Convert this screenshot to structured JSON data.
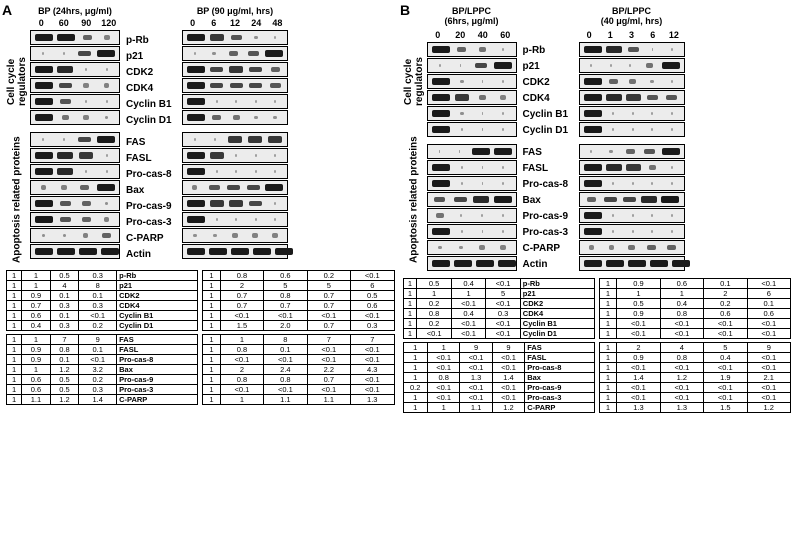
{
  "panelA": {
    "label": "A",
    "leftHeader": "BP (24hrs, μg/ml)",
    "leftLanes": [
      "0",
      "60",
      "90",
      "120"
    ],
    "rightHeader": "BP (90 μg/ml, hrs)",
    "rightLanes": [
      "0",
      "6",
      "12",
      "24",
      "48"
    ]
  },
  "panelB": {
    "label": "B",
    "leftHeader": "BP/LPPC\n(6hrs, μg/ml)",
    "leftLanes": [
      "0",
      "20",
      "40",
      "60"
    ],
    "rightHeader": "BP/LPPC\n(40 μg/ml, hrs)",
    "rightLanes": [
      "0",
      "1",
      "3",
      "6",
      "12"
    ]
  },
  "groups": {
    "cellCycle": "Cell cycle\nregulators",
    "apoptosis": "Apoptosis related\nproteins"
  },
  "proteins1": [
    "p-Rb",
    "p21",
    "CDK2",
    "CDK4",
    "Cyclin B1",
    "Cyclin D1"
  ],
  "proteins2": [
    "FAS",
    "FASL",
    "Pro-cas-8",
    "Bax",
    "Pro-cas-9",
    "Pro-cas-3",
    "C-PARP",
    "Actin"
  ],
  "bands": {
    "A_left": {
      "p-Rb": [
        1,
        1,
        0.5,
        0.3
      ],
      "p21": [
        0.1,
        0.1,
        0.7,
        1
      ],
      "CDK2": [
        1,
        0.9,
        0.1,
        0.1
      ],
      "CDK4": [
        1,
        0.7,
        0.3,
        0.3
      ],
      "Cyclin B1": [
        1,
        0.6,
        0.1,
        0.1
      ],
      "Cyclin D1": [
        1,
        0.4,
        0.3,
        0.2
      ],
      "FAS": [
        0.1,
        0.1,
        0.7,
        1
      ],
      "FASL": [
        1,
        0.9,
        0.8,
        0.1
      ],
      "Pro-cas-8": [
        1,
        0.9,
        0.1,
        0.1
      ],
      "Bax": [
        0.3,
        0.3,
        0.5,
        1
      ],
      "Pro-cas-9": [
        1,
        0.6,
        0.5,
        0.2
      ],
      "Pro-cas-3": [
        1,
        0.6,
        0.5,
        0.3
      ],
      "C-PARP": [
        0.2,
        0.2,
        0.3,
        0.5
      ],
      "Actin": [
        1,
        1,
        1,
        1
      ]
    },
    "A_right": {
      "p-Rb": [
        1,
        0.8,
        0.6,
        0.2,
        0.1
      ],
      "p21": [
        0.1,
        0.2,
        0.5,
        0.6,
        1
      ],
      "CDK2": [
        1,
        0.7,
        0.8,
        0.7,
        0.5
      ],
      "CDK4": [
        1,
        0.7,
        0.7,
        0.7,
        0.6
      ],
      "Cyclin B1": [
        1,
        0.1,
        0.1,
        0.1,
        0.1
      ],
      "Cyclin D1": [
        1,
        0.5,
        0.4,
        0.2,
        0.2
      ],
      "FAS": [
        0.1,
        0.1,
        0.8,
        0.8,
        0.8
      ],
      "FASL": [
        1,
        0.8,
        0.1,
        0.1,
        0.1
      ],
      "Pro-cas-8": [
        1,
        0.1,
        0.1,
        0.1,
        0.1
      ],
      "Bax": [
        0.3,
        0.6,
        0.7,
        0.7,
        1
      ],
      "Pro-cas-9": [
        1,
        0.8,
        0.8,
        0.7,
        0.1
      ],
      "Pro-cas-3": [
        1,
        0.1,
        0.1,
        0.1,
        0.1
      ],
      "C-PARP": [
        0.2,
        0.2,
        0.3,
        0.3,
        0.3
      ],
      "Actin": [
        1,
        1,
        1,
        1,
        1
      ]
    },
    "B_left": {
      "p-Rb": [
        1,
        0.5,
        0.4,
        0.1
      ],
      "p21": [
        0.1,
        0.1,
        0.7,
        1
      ],
      "CDK2": [
        1,
        0.2,
        0.1,
        0.1
      ],
      "CDK4": [
        1,
        0.8,
        0.4,
        0.3
      ],
      "Cyclin B1": [
        1,
        0.2,
        0.1,
        0.1
      ],
      "Cyclin D1": [
        1,
        0.1,
        0.1,
        0.1
      ],
      "FAS": [
        0.1,
        0.1,
        1,
        1
      ],
      "FASL": [
        1,
        0.1,
        0.1,
        0.1
      ],
      "Pro-cas-8": [
        1,
        0.1,
        0.1,
        0.1
      ],
      "Bax": [
        0.6,
        0.7,
        0.9,
        1
      ],
      "Pro-cas-9": [
        0.4,
        0.1,
        0.1,
        0.1
      ],
      "Pro-cas-3": [
        1,
        0.1,
        0.1,
        0.1
      ],
      "C-PARP": [
        0.2,
        0.2,
        0.3,
        0.3
      ],
      "Actin": [
        1,
        1,
        1,
        1
      ]
    },
    "B_right": {
      "p-Rb": [
        1,
        0.9,
        0.6,
        0.1,
        0.1
      ],
      "p21": [
        0.1,
        0.1,
        0.1,
        0.4,
        1
      ],
      "CDK2": [
        1,
        0.5,
        0.4,
        0.2,
        0.1
      ],
      "CDK4": [
        1,
        0.9,
        0.8,
        0.6,
        0.6
      ],
      "Cyclin B1": [
        1,
        0.1,
        0.1,
        0.1,
        0.1
      ],
      "Cyclin D1": [
        1,
        0.1,
        0.1,
        0.1,
        0.1
      ],
      "FAS": [
        0.1,
        0.2,
        0.5,
        0.6,
        1
      ],
      "FASL": [
        1,
        0.9,
        0.8,
        0.4,
        0.1
      ],
      "Pro-cas-8": [
        1,
        0.1,
        0.1,
        0.1,
        0.1
      ],
      "Bax": [
        0.5,
        0.7,
        0.7,
        0.9,
        1
      ],
      "Pro-cas-9": [
        1,
        0.1,
        0.1,
        0.1,
        0.1
      ],
      "Pro-cas-3": [
        1,
        0.1,
        0.1,
        0.1,
        0.1
      ],
      "C-PARP": [
        0.3,
        0.3,
        0.4,
        0.5,
        0.5
      ],
      "Actin": [
        1,
        1,
        1,
        1,
        1
      ]
    }
  },
  "quant": {
    "A_left_1": [
      [
        "1",
        "1",
        "0.5",
        "0.3",
        "p-Rb"
      ],
      [
        "1",
        "1",
        "4",
        "8",
        "p21"
      ],
      [
        "1",
        "0.9",
        "0.1",
        "0.1",
        "CDK2"
      ],
      [
        "1",
        "0.7",
        "0.3",
        "0.3",
        "CDK4"
      ],
      [
        "1",
        "0.6",
        "0.1",
        "<0.1",
        "Cyclin B1"
      ],
      [
        "1",
        "0.4",
        "0.3",
        "0.2",
        "Cyclin D1"
      ]
    ],
    "A_left_2": [
      [
        "1",
        "1",
        "7",
        "9",
        "FAS"
      ],
      [
        "1",
        "0.9",
        "0.8",
        "0.1",
        "FASL"
      ],
      [
        "1",
        "0.9",
        "0.1",
        "<0.1",
        "Pro-cas-8"
      ],
      [
        "1",
        "1",
        "1.2",
        "3.2",
        "Bax"
      ],
      [
        "1",
        "0.6",
        "0.5",
        "0.2",
        "Pro-cas-9"
      ],
      [
        "1",
        "0.6",
        "0.5",
        "0.3",
        "Pro-cas-3"
      ],
      [
        "1",
        "1.1",
        "1.2",
        "1.4",
        "C-PARP"
      ]
    ],
    "A_right_1": [
      [
        "1",
        "0.8",
        "0.6",
        "0.2",
        "<0.1"
      ],
      [
        "1",
        "2",
        "5",
        "5",
        "6"
      ],
      [
        "1",
        "0.7",
        "0.8",
        "0.7",
        "0.5"
      ],
      [
        "1",
        "0.7",
        "0.7",
        "0.7",
        "0.6"
      ],
      [
        "1",
        "<0.1",
        "<0.1",
        "<0.1",
        "<0.1"
      ],
      [
        "1",
        "1.5",
        "2.0",
        "0.7",
        "0.3"
      ]
    ],
    "A_right_2": [
      [
        "1",
        "1",
        "8",
        "7",
        "7"
      ],
      [
        "1",
        "0.8",
        "0.1",
        "<0.1",
        "<0.1"
      ],
      [
        "1",
        "<0.1",
        "<0.1",
        "<0.1",
        "<0.1"
      ],
      [
        "1",
        "2",
        "2.4",
        "2.2",
        "4.3"
      ],
      [
        "1",
        "0.8",
        "0.8",
        "0.7",
        "<0.1"
      ],
      [
        "1",
        "<0.1",
        "<0.1",
        "<0.1",
        "<0.1"
      ],
      [
        "1",
        "1",
        "1.1",
        "1.1",
        "1.3"
      ]
    ],
    "B_left_1": [
      [
        "1",
        "0.5",
        "0.4",
        "<0.1",
        "p-Rb"
      ],
      [
        "1",
        "1",
        "1",
        "5",
        "p21"
      ],
      [
        "1",
        "0.2",
        "<0.1",
        "<0.1",
        "CDK2"
      ],
      [
        "1",
        "0.8",
        "0.4",
        "0.3",
        "CDK4"
      ],
      [
        "1",
        "0.2",
        "<0.1",
        "<0.1",
        "Cyclin B1"
      ],
      [
        "1",
        "<0.1",
        "<0.1",
        "<0.1",
        "Cyclin D1"
      ]
    ],
    "B_left_2": [
      [
        "1",
        "1",
        "9",
        "9",
        "FAS"
      ],
      [
        "1",
        "<0.1",
        "<0.1",
        "<0.1",
        "FASL"
      ],
      [
        "1",
        "<0.1",
        "<0.1",
        "<0.1",
        "Pro-cas-8"
      ],
      [
        "1",
        "0.8",
        "1.3",
        "1.4",
        "Bax"
      ],
      [
        "0.2",
        "<0.1",
        "<0.1",
        "<0.1",
        "Pro-cas-9"
      ],
      [
        "1",
        "<0.1",
        "<0.1",
        "<0.1",
        "Pro-cas-3"
      ],
      [
        "1",
        "1",
        "1.1",
        "1.2",
        "C-PARP"
      ]
    ],
    "B_right_1": [
      [
        "1",
        "0.9",
        "0.6",
        "0.1",
        "<0.1"
      ],
      [
        "1",
        "1",
        "1",
        "2",
        "6"
      ],
      [
        "1",
        "0.5",
        "0.4",
        "0.2",
        "0.1"
      ],
      [
        "1",
        "0.9",
        "0.8",
        "0.6",
        "0.6"
      ],
      [
        "1",
        "<0.1",
        "<0.1",
        "<0.1",
        "<0.1"
      ],
      [
        "1",
        "<0.1",
        "<0.1",
        "<0.1",
        "<0.1"
      ]
    ],
    "B_right_2": [
      [
        "1",
        "2",
        "4",
        "5",
        "9"
      ],
      [
        "1",
        "0.9",
        "0.8",
        "0.4",
        "<0.1"
      ],
      [
        "1",
        "<0.1",
        "<0.1",
        "<0.1",
        "<0.1"
      ],
      [
        "1",
        "1.4",
        "1.2",
        "1.9",
        "2.1"
      ],
      [
        "1",
        "<0.1",
        "<0.1",
        "<0.1",
        "<0.1"
      ],
      [
        "1",
        "<0.1",
        "<0.1",
        "<0.1",
        "<0.1"
      ],
      [
        "1",
        "1.3",
        "1.3",
        "1.5",
        "1.2"
      ]
    ]
  },
  "style": {
    "bandColor": "#1a1a1a",
    "boxBg": "#ececec",
    "maxBandWidth": 18
  }
}
